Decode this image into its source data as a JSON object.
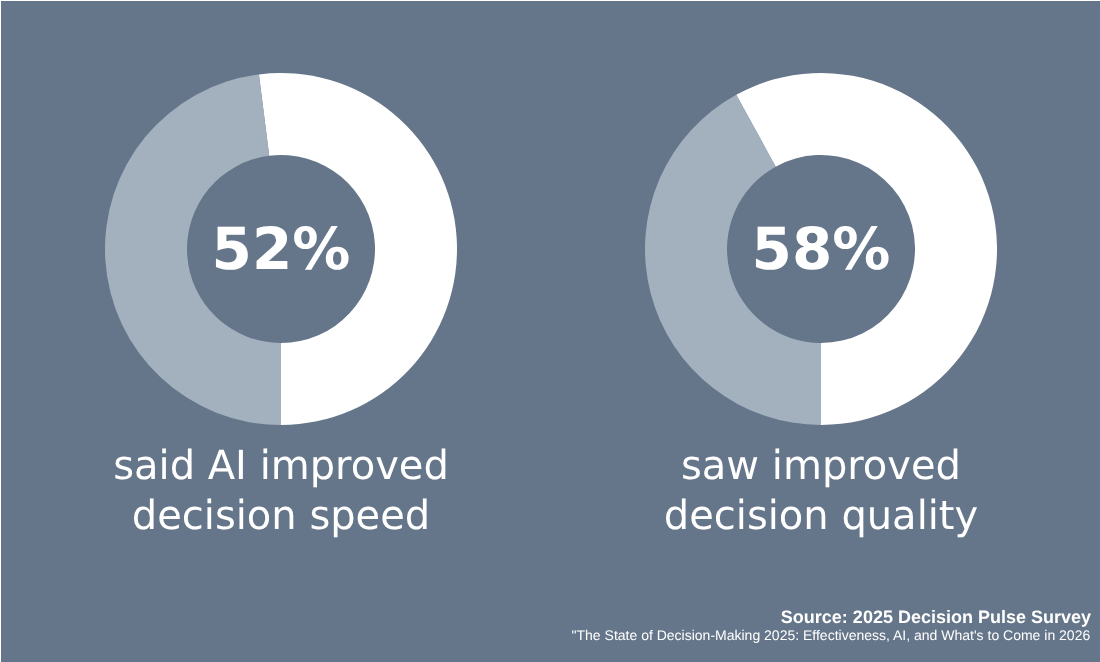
{
  "chart_data": [
    {
      "type": "donut",
      "title": "said AI improved decision speed",
      "categories": [
        null,
        null
      ],
      "values": [
        52,
        48
      ],
      "colors": [
        "#ffffff",
        "#a3b1bf"
      ],
      "value_labels": [
        "52%",
        null
      ]
    },
    {
      "type": "donut",
      "title": "saw improved decision quality",
      "categories": [
        null,
        null
      ],
      "values": [
        58,
        42
      ],
      "colors": [
        "#ffffff",
        "#a3b1bf"
      ],
      "value_labels": [
        "58%",
        null
      ],
      "annotations": [
        "Source: 2025 Decision Pulse Survey",
        "\"The State of Decision-Making 2025: Effectiveness, AI, and What's to Come in 2026"
      ]
    }
  ]
}
